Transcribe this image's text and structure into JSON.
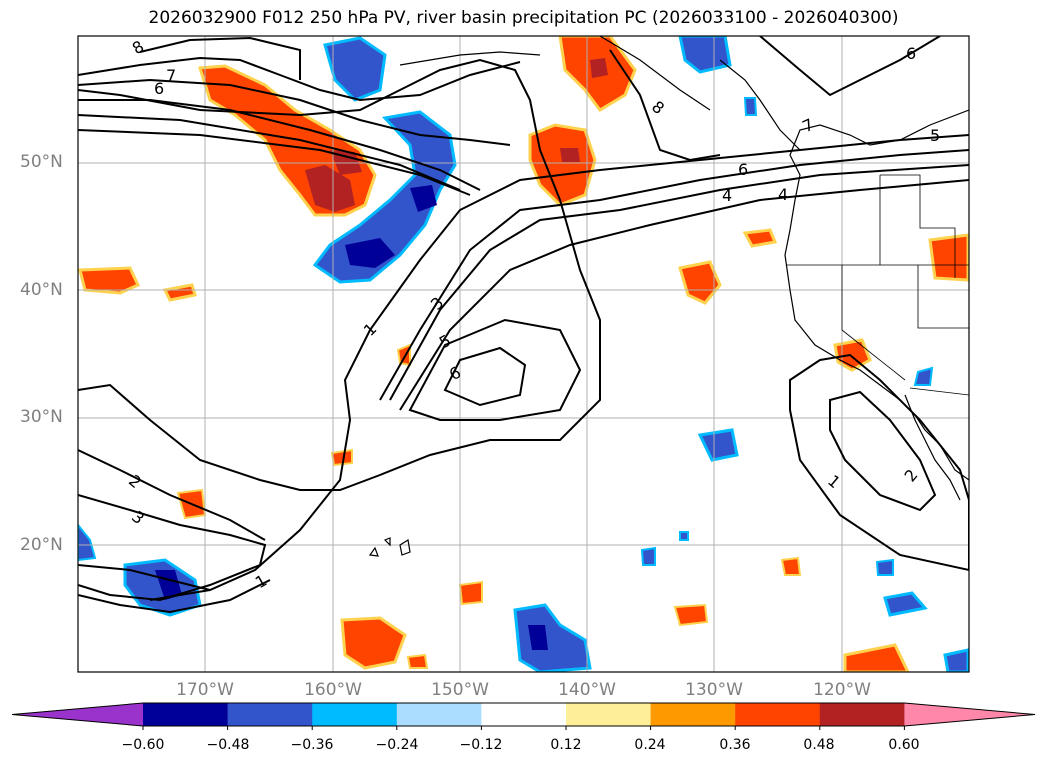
{
  "title": "2026032900 F012 250 hPa PV, river basin precipitation PC (2026033100 - 2026040300)",
  "latitude_labels": [
    "50°N",
    "40°N",
    "30°N",
    "20°N"
  ],
  "longitude_labels": [
    "170°W",
    "160°W",
    "150°W",
    "140°W",
    "130°W",
    "120°W"
  ],
  "pv_contour_labels": [
    "8",
    "7",
    "6",
    "8",
    "6",
    "7",
    "5",
    "6",
    "4",
    "4",
    "3",
    "1",
    "5",
    "6",
    "2",
    "3",
    "1",
    "1",
    "2"
  ],
  "colorbar": {
    "tick_labels": [
      "−0.60",
      "−0.48",
      "−0.36",
      "−0.24",
      "−0.12",
      "0.12",
      "0.24",
      "0.36",
      "0.48",
      "0.60"
    ],
    "colors": [
      "#9933cc",
      "#000099",
      "#3355cc",
      "#00bbff",
      "#aaddff",
      "#ffffff",
      "#ffee99",
      "#ff9900",
      "#ff4400",
      "#b22222",
      "#ff88aa"
    ]
  }
}
